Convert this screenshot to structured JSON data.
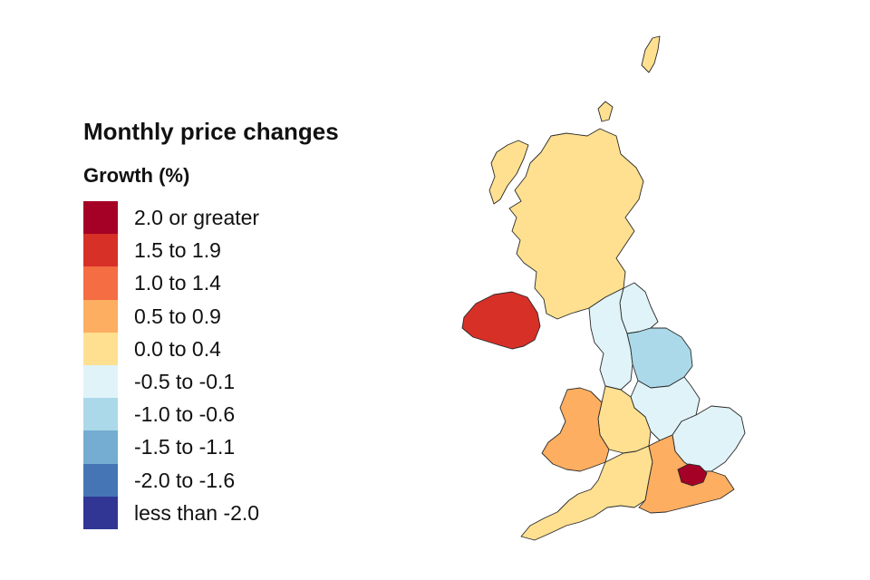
{
  "title": "Monthly price changes",
  "subtitle": "Growth (%)",
  "legend": [
    {
      "label": "2.0 or greater",
      "color": "#a50026"
    },
    {
      "label": "1.5 to 1.9",
      "color": "#d73027"
    },
    {
      "label": "1.0 to 1.4",
      "color": "#f46d43"
    },
    {
      "label": "0.5 to 0.9",
      "color": "#fdae61"
    },
    {
      "label": "0.0 to 0.4",
      "color": "#fee090"
    },
    {
      "label": "-0.5 to -0.1",
      "color": "#e0f3f8"
    },
    {
      "label": "-1.0 to -0.6",
      "color": "#abd9e9"
    },
    {
      "label": "-1.5 to -1.1",
      "color": "#74add1"
    },
    {
      "label": "-2.0 to -1.6",
      "color": "#4575b4"
    },
    {
      "label": "less than -2.0",
      "color": "#313695"
    }
  ],
  "regions": [
    {
      "name": "Scotland",
      "band": "0.0 to 0.4"
    },
    {
      "name": "Northern Ireland",
      "band": "1.5 to 1.9"
    },
    {
      "name": "North East",
      "band": "-0.5 to -0.1"
    },
    {
      "name": "North West",
      "band": "-0.5 to -0.1"
    },
    {
      "name": "Yorkshire and The Humber",
      "band": "-1.0 to -0.6"
    },
    {
      "name": "East Midlands",
      "band": "-0.5 to -0.1"
    },
    {
      "name": "West Midlands",
      "band": "0.0 to 0.4"
    },
    {
      "name": "East of England",
      "band": "-0.5 to -0.1"
    },
    {
      "name": "Wales",
      "band": "0.5 to 0.9"
    },
    {
      "name": "South West",
      "band": "0.0 to 0.4"
    },
    {
      "name": "South East",
      "band": "0.5 to 0.9"
    },
    {
      "name": "London",
      "band": "2.0 or greater"
    }
  ]
}
